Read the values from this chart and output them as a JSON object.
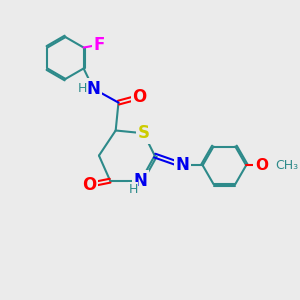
{
  "bg_color": "#ebebeb",
  "atom_colors": {
    "C": "#2d8a8a",
    "N": "#0000ee",
    "O": "#ff0000",
    "S": "#cccc00",
    "F": "#ff00ff",
    "H": "#2d8a8a"
  },
  "bond_color": "#2d8a8a",
  "font_size": 10,
  "bold_font_size": 11
}
